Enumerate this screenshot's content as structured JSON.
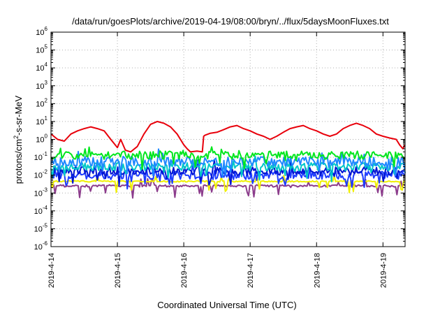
{
  "chart_data": {
    "type": "line",
    "title": "/data/run/goesPlots/archive/2019-04-19/08:00/bryn/../flux/5daysMoonFluxes.txt",
    "xlabel": "Coordinated Universal Time (UTC)",
    "ylabel": "protons/cm²-s-sr-MeV",
    "ylabel_parts": {
      "before": "protons/cm",
      "sup": "2",
      "after": "-s-sr-MeV"
    },
    "yscale": "log",
    "ylim_exp": [
      -6,
      6
    ],
    "y_tick_labels": [
      {
        "base": "10",
        "exp": "-6"
      },
      {
        "base": "10",
        "exp": "-5"
      },
      {
        "base": "10",
        "exp": "-4"
      },
      {
        "base": "10",
        "exp": "-3"
      },
      {
        "base": "10",
        "exp": "-2"
      },
      {
        "base": "10",
        "exp": "-1"
      },
      {
        "base": "10",
        "exp": "0"
      },
      {
        "base": "10",
        "exp": "1"
      },
      {
        "base": "10",
        "exp": "2"
      },
      {
        "base": "10",
        "exp": "3"
      },
      {
        "base": "10",
        "exp": "4"
      },
      {
        "base": "10",
        "exp": "5"
      },
      {
        "base": "10",
        "exp": "6"
      }
    ],
    "xlim": [
      "2019-04-14",
      "2019-04-19T08:00"
    ],
    "x_tick_labels": [
      "2019-4-14",
      "2019-4-15",
      "2019-4-16",
      "2019-4-17",
      "2019-4-18",
      "2019-4-19"
    ],
    "grid": true,
    "series": [
      {
        "color": "#e8000b",
        "x": [
          0.0,
          0.1,
          0.2,
          0.3,
          0.4,
          0.5,
          0.6,
          0.7,
          0.8,
          0.9,
          1.0,
          1.05,
          1.12,
          1.2,
          1.3,
          1.4,
          1.5,
          1.6,
          1.7,
          1.8,
          1.9,
          2.0,
          2.05,
          2.1,
          2.2,
          2.28,
          2.3,
          2.32,
          2.4,
          2.5,
          2.6,
          2.7,
          2.8,
          2.9,
          3.0,
          3.1,
          3.2,
          3.3,
          3.4,
          3.5,
          3.6,
          3.7,
          3.8,
          3.9,
          4.0,
          4.1,
          4.2,
          4.3,
          4.4,
          4.5,
          4.6,
          4.7,
          4.8,
          4.9,
          5.0,
          5.1,
          5.2,
          5.25,
          5.3,
          5.33
        ],
        "y": [
          2.0,
          1.0,
          0.8,
          2.0,
          3.0,
          4.0,
          5.0,
          4.0,
          3.0,
          1.0,
          0.35,
          1.0,
          0.25,
          0.2,
          0.4,
          2.0,
          7.0,
          10.0,
          8.0,
          5.0,
          2.0,
          0.5,
          0.3,
          0.2,
          0.22,
          0.2,
          1.5,
          1.7,
          2.2,
          2.5,
          3.5,
          5.0,
          6.0,
          4.0,
          3.0,
          2.0,
          1.5,
          1.0,
          1.5,
          2.5,
          4.0,
          5.0,
          6.0,
          4.0,
          3.0,
          2.0,
          1.5,
          2.0,
          4.0,
          6.0,
          8.0,
          6.0,
          4.0,
          2.0,
          1.5,
          1.2,
          1.0,
          0.5,
          0.3,
          0.5
        ]
      },
      {
        "color": "#00e61e",
        "level": 0.13,
        "spread": 0.45,
        "seed": 11
      },
      {
        "color": "#1e88ff",
        "level": 0.06,
        "spread": 0.55,
        "seed": 23
      },
      {
        "color": "#00c8c8",
        "level": 0.03,
        "spread": 0.45,
        "seed": 37
      },
      {
        "color": "#0014d2",
        "level": 0.017,
        "spread": 0.45,
        "seed": 41
      },
      {
        "color": "#1e3cff",
        "level": 0.01,
        "spread": 0.5,
        "seed": 53
      },
      {
        "color": "#f0f000",
        "level": 0.0045,
        "spread": 0.08,
        "seed": 61
      },
      {
        "color": "#8c3c8c",
        "level": 0.0025,
        "spread": 0.12,
        "seed": 71
      }
    ]
  }
}
